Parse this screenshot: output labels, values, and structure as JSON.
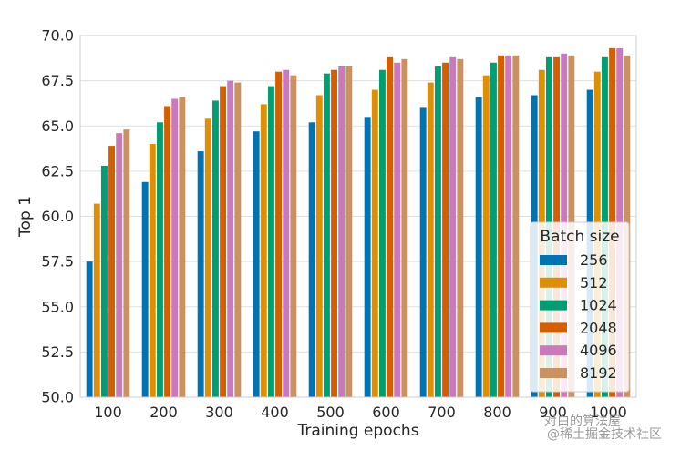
{
  "chart_data": {
    "type": "bar",
    "title": "",
    "xlabel": "Training epochs",
    "ylabel": "Top 1",
    "ylim": [
      50.0,
      70.0
    ],
    "yticks": [
      "50.0",
      "52.5",
      "55.0",
      "57.5",
      "60.0",
      "62.5",
      "65.0",
      "67.5",
      "70.0"
    ],
    "categories": [
      "100",
      "200",
      "300",
      "400",
      "500",
      "600",
      "700",
      "800",
      "900",
      "1000"
    ],
    "legend_title": "Batch size",
    "legend_position": "lower-right",
    "grid": true,
    "series": [
      {
        "name": "256",
        "color": "#0173b2",
        "values": [
          57.5,
          61.9,
          63.6,
          64.7,
          65.2,
          65.5,
          66.0,
          66.6,
          66.7,
          67.0
        ]
      },
      {
        "name": "512",
        "color": "#de8f05",
        "values": [
          60.7,
          64.0,
          65.4,
          66.2,
          66.7,
          67.0,
          67.4,
          67.8,
          68.1,
          68.0
        ]
      },
      {
        "name": "1024",
        "color": "#029e73",
        "values": [
          62.8,
          65.2,
          66.4,
          67.2,
          67.9,
          68.1,
          68.3,
          68.5,
          68.8,
          68.8
        ]
      },
      {
        "name": "2048",
        "color": "#d55e00",
        "values": [
          63.9,
          66.1,
          67.2,
          68.0,
          68.1,
          68.8,
          68.5,
          68.9,
          68.8,
          69.3
        ]
      },
      {
        "name": "4096",
        "color": "#cc78bc",
        "values": [
          64.6,
          66.5,
          67.5,
          68.1,
          68.3,
          68.5,
          68.8,
          68.9,
          69.0,
          69.3
        ]
      },
      {
        "name": "8192",
        "color": "#ca9161",
        "values": [
          64.8,
          66.6,
          67.4,
          67.8,
          68.3,
          68.7,
          68.7,
          68.9,
          68.9,
          68.9
        ]
      }
    ]
  },
  "watermark": {
    "line1": "对白的算法屋",
    "line2": "@稀土掘金技术社区"
  }
}
